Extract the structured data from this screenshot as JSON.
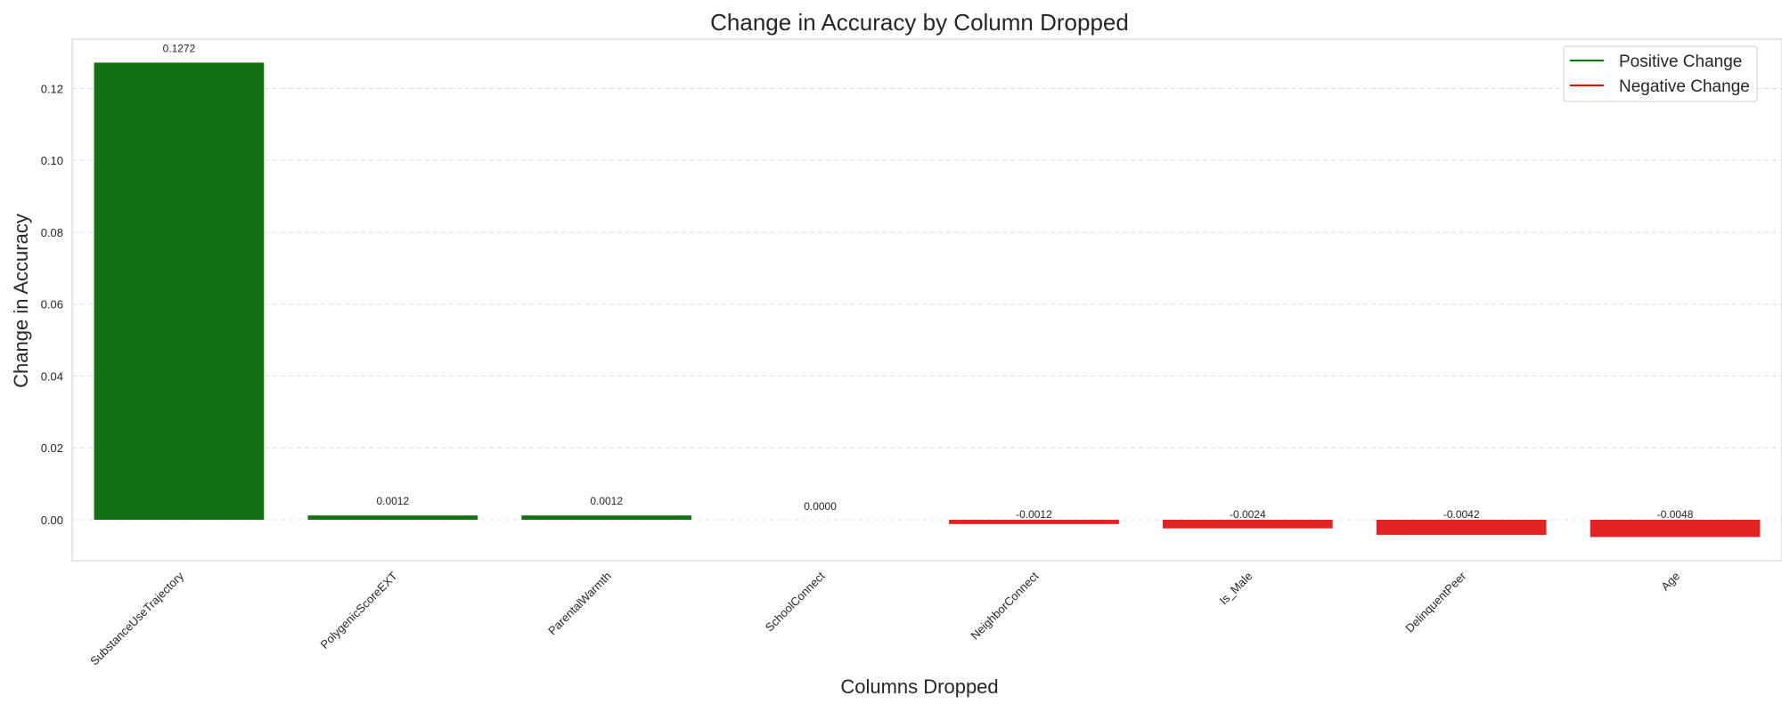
{
  "chart_data": {
    "type": "bar",
    "title": "Change in Accuracy by Column Dropped",
    "xlabel": "Columns Dropped",
    "ylabel": "Change in Accuracy",
    "categories": [
      "SubstanceUseTrajectory",
      "PolygenicScoreEXT",
      "ParentalWarmth",
      "SchoolConnect",
      "NeighborConnect",
      "Is_Male",
      "DelinquentPeer",
      "Age"
    ],
    "values": [
      0.1272,
      0.0012,
      0.0012,
      0.0,
      -0.0012,
      -0.0024,
      -0.0042,
      -0.0048
    ],
    "value_labels": [
      "0.1272",
      "0.0012",
      "0.0012",
      "0.0000",
      "-0.0012",
      "-0.0024",
      "-0.0042",
      "-0.0048"
    ],
    "ylim": [
      -0.011,
      0.1335
    ],
    "yticks": [
      0.0,
      0.02,
      0.04,
      0.06,
      0.08,
      0.1,
      0.12
    ],
    "ytick_labels": [
      "0.00",
      "0.02",
      "0.04",
      "0.06",
      "0.08",
      "0.10",
      "0.12"
    ],
    "grid": "y-dashed",
    "legend": {
      "position": "top-right",
      "entries": [
        {
          "label": "Positive Change",
          "color": "#008000"
        },
        {
          "label": "Negative Change",
          "color": "#ff0000"
        }
      ]
    },
    "colors": {
      "positive": "#127212",
      "negative": "#e32222",
      "positive_legend": "#008000",
      "negative_legend": "#ff0000"
    }
  }
}
